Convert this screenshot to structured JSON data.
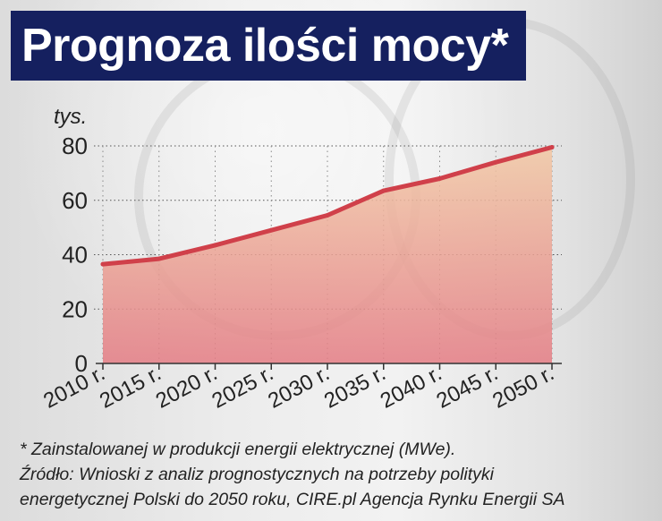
{
  "title": "Prognoza ilości mocy*",
  "chart_data": {
    "type": "line",
    "categories": [
      "2010 r.",
      "2015 r.",
      "2020 r.",
      "2025 r.",
      "2030 r.",
      "2035 r.",
      "2040 r.",
      "2045 r.",
      "2050 r."
    ],
    "values": [
      36.5,
      38.5,
      43.5,
      49,
      54.5,
      63.5,
      68,
      74,
      79.5
    ],
    "ylabel": "tys.",
    "ylim": [
      0,
      80
    ],
    "yticks": [
      "0",
      "20",
      "40",
      "60",
      "80"
    ],
    "grid": true,
    "colors": {
      "line": "#d0404a",
      "area_top": "#f2c8a4",
      "area_bottom": "#e47c84"
    }
  },
  "footnote": {
    "note": "* Zainstalowanej w produkcji energii elektrycznej (MWe).",
    "source_line1": "Źródło:  Wnioski z analiz prognostycznych na potrzeby polityki",
    "source_line2": "energetycznej Polski do 2050 roku, CIRE.pl Agencja Rynku Energii SA"
  }
}
